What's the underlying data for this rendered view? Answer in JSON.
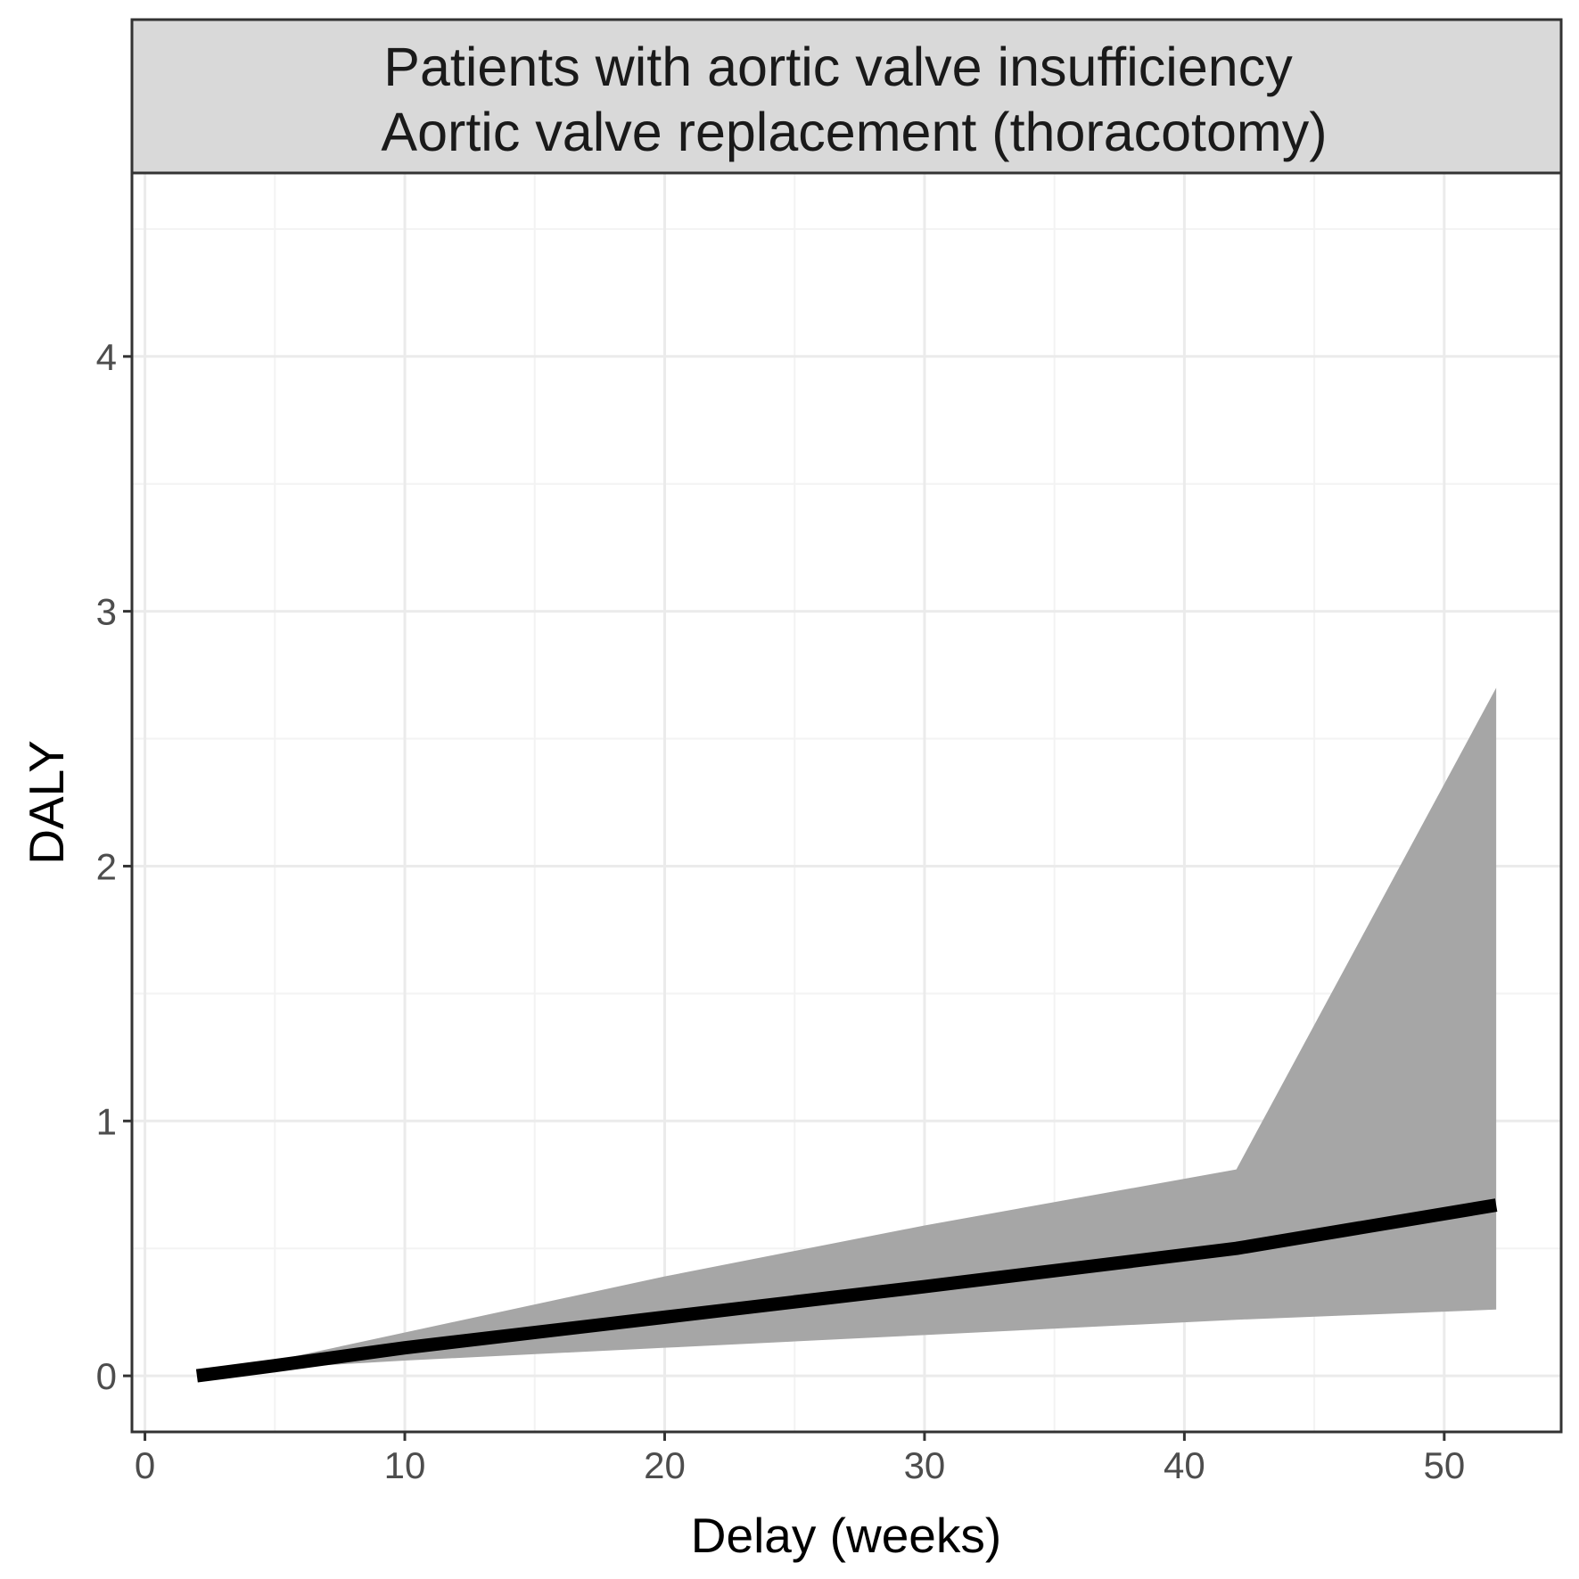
{
  "chart_data": {
    "type": "line",
    "facet_title": [
      "Patients with aortic valve insufficiency",
      "Aortic valve replacement (thoracotomy)"
    ],
    "xlabel": "Delay (weeks)",
    "ylabel": "DALY",
    "xlim": [
      -0.5,
      54.5
    ],
    "ylim": [
      -0.22,
      4.72
    ],
    "x_ticks": [
      0,
      10,
      20,
      30,
      40,
      50
    ],
    "y_ticks": [
      0,
      1,
      2,
      3,
      4
    ],
    "x_minor": [
      5,
      15,
      25,
      35,
      45
    ],
    "y_minor": [
      0.5,
      1.5,
      2.5,
      3.5,
      4.5
    ],
    "grid": true,
    "series": [
      {
        "name": "DALY",
        "x": [
          2,
          5,
          10,
          20,
          30,
          42,
          52
        ],
        "y": [
          0,
          0.04,
          0.11,
          0.23,
          0.35,
          0.5,
          0.67
        ]
      }
    ],
    "band": {
      "name": "uncertainty interval",
      "x": [
        2,
        5,
        10,
        20,
        30,
        42,
        52
      ],
      "lower": [
        0,
        0.03,
        0.06,
        0.11,
        0.16,
        0.22,
        0.26
      ],
      "upper": [
        0,
        0.06,
        0.17,
        0.39,
        0.59,
        0.81,
        2.7
      ]
    },
    "colors": {
      "line": "#000000",
      "band": "#a6a6a6",
      "strip_fill": "#d9d9d9",
      "grid_major": "#ebebeb",
      "grid_minor": "#f3f3f3",
      "border": "#333333"
    }
  }
}
